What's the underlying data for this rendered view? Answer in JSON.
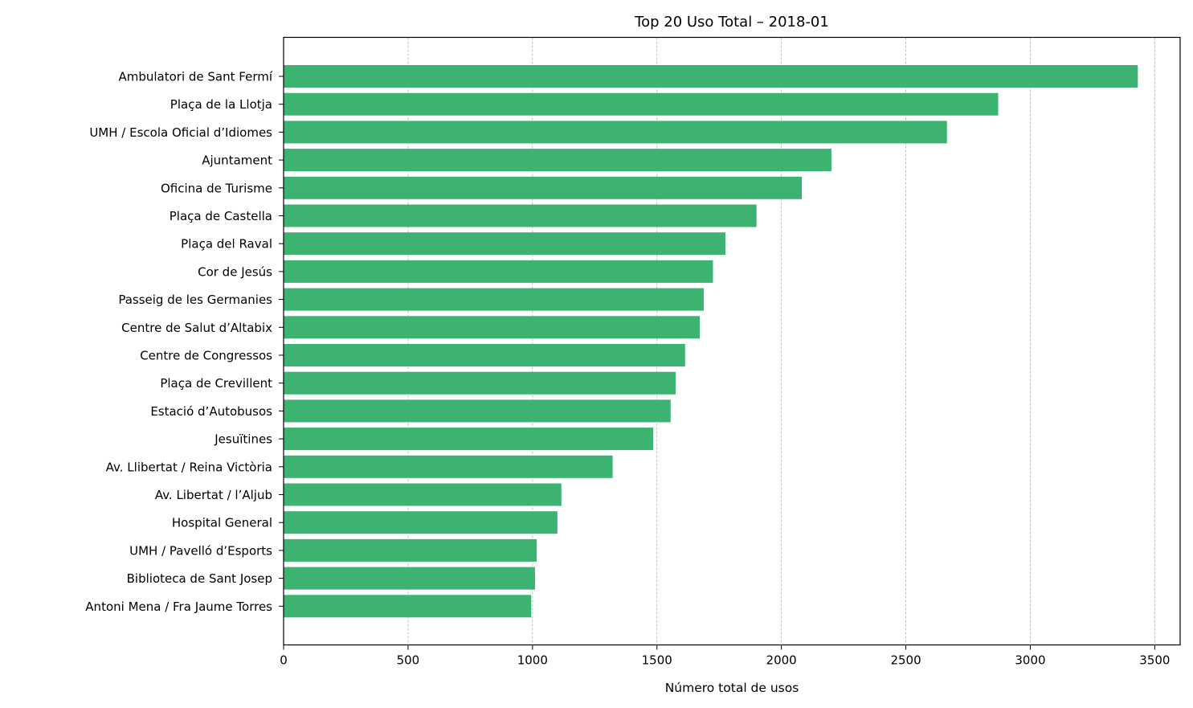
{
  "chart_data": {
    "type": "bar",
    "orientation": "horizontal",
    "title": "Top 20 Uso Total – 2018-01",
    "xlabel": "Número total de usos",
    "ylabel": "",
    "categories": [
      "Ambulatori de Sant Fermí",
      "Plaça de la Llotja",
      "UMH / Escola Oficial d’Idiomes",
      "Ajuntament",
      "Oficina de Turisme",
      "Plaça de Castella",
      "Plaça del Raval",
      "Cor de Jesús",
      "Passeig de les Germanies",
      "Centre de Salut d’Altabix",
      "Centre de Congressos",
      "Plaça de Crevillent",
      "Estació d’Autobusos",
      "Jesuïtines",
      "Av. Llibertat / Reina Victòria",
      "Av. Libertat / l’Aljub",
      "Hospital General",
      "UMH / Pavelló d’Esports",
      "Biblioteca de Sant Josep",
      "Antoni Mena / Fra Jaume Torres"
    ],
    "values": [
      3432,
      2871,
      2665,
      2201,
      2082,
      1900,
      1775,
      1725,
      1688,
      1672,
      1613,
      1575,
      1555,
      1485,
      1322,
      1116,
      1100,
      1017,
      1010,
      995
    ],
    "xlim": [
      0,
      3602
    ],
    "xticks": [
      "0",
      "500",
      "1000",
      "1500",
      "2000",
      "2500",
      "3000",
      "3500"
    ],
    "grid": "vertical dashed",
    "bar_color": "#3cb371"
  }
}
